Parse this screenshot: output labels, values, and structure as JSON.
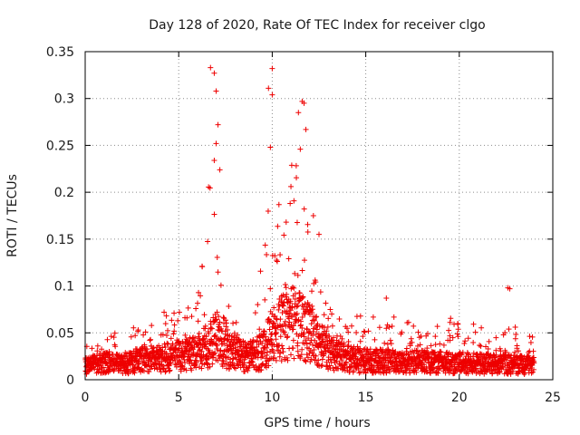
{
  "chart_data": {
    "type": "scatter",
    "title": "Day 128 of 2020, Rate Of TEC Index for receiver clgo",
    "xlabel": "GPS time / hours",
    "ylabel": "ROTI / TECUs",
    "xlim": [
      0,
      25
    ],
    "ylim": [
      0,
      0.35
    ],
    "x_ticks": [
      "0",
      "5",
      "10",
      "15",
      "20",
      "25"
    ],
    "y_ticks": [
      "0",
      "0.05",
      "0.1",
      "0.15",
      "0.2",
      "0.25",
      "0.3",
      "0.35"
    ],
    "x_tick_values": [
      0,
      5,
      10,
      15,
      20,
      25
    ],
    "y_tick_values": [
      0,
      0.05,
      0.1,
      0.15,
      0.2,
      0.25,
      0.3,
      0.35
    ],
    "grid": true,
    "marker": "+",
    "color": "#ee0000",
    "series": [
      {
        "name": "ROTI",
        "profile": {
          "hours": [
            0.0,
            0.5,
            1.0,
            1.5,
            2.0,
            2.5,
            3.0,
            3.5,
            4.0,
            4.5,
            5.0,
            5.5,
            6.0,
            6.5,
            6.8,
            7.0,
            7.3,
            7.6,
            8.0,
            8.5,
            9.0,
            9.5,
            9.8,
            10.0,
            10.5,
            11.0,
            11.3,
            11.6,
            12.0,
            12.5,
            13.0,
            13.5,
            14.0,
            15.0,
            16.0,
            17.0,
            18.0,
            19.0,
            20.0,
            21.0,
            22.0,
            23.0,
            24.0
          ],
          "median": [
            0.015,
            0.016,
            0.018,
            0.017,
            0.016,
            0.02,
            0.022,
            0.021,
            0.023,
            0.024,
            0.025,
            0.027,
            0.03,
            0.035,
            0.04,
            0.045,
            0.038,
            0.03,
            0.028,
            0.025,
            0.026,
            0.03,
            0.04,
            0.05,
            0.055,
            0.06,
            0.065,
            0.06,
            0.05,
            0.04,
            0.03,
            0.025,
            0.022,
            0.02,
            0.02,
            0.019,
            0.019,
            0.018,
            0.018,
            0.017,
            0.017,
            0.016,
            0.016
          ],
          "upper": [
            0.035,
            0.04,
            0.045,
            0.06,
            0.045,
            0.07,
            0.065,
            0.06,
            0.07,
            0.075,
            0.08,
            0.085,
            0.1,
            0.15,
            0.33,
            0.28,
            0.11,
            0.09,
            0.07,
            0.065,
            0.08,
            0.15,
            0.31,
            0.25,
            0.2,
            0.26,
            0.3,
            0.22,
            0.15,
            0.1,
            0.08,
            0.07,
            0.065,
            0.07,
            0.085,
            0.07,
            0.06,
            0.065,
            0.07,
            0.06,
            0.055,
            0.06,
            0.045
          ]
        },
        "outliers": [
          [
            6.7,
            0.333
          ],
          [
            6.9,
            0.327
          ],
          [
            7.0,
            0.308
          ],
          [
            7.1,
            0.272
          ],
          [
            7.0,
            0.252
          ],
          [
            6.9,
            0.234
          ],
          [
            7.2,
            0.224
          ],
          [
            9.8,
            0.311
          ],
          [
            10.0,
            0.332
          ],
          [
            10.0,
            0.304
          ],
          [
            9.9,
            0.248
          ],
          [
            11.6,
            0.297
          ],
          [
            11.7,
            0.295
          ],
          [
            11.4,
            0.285
          ],
          [
            11.8,
            0.267
          ],
          [
            11.5,
            0.246
          ],
          [
            11.0,
            0.206
          ],
          [
            16.1,
            0.087
          ],
          [
            22.6,
            0.098
          ],
          [
            22.7,
            0.097
          ],
          [
            12.5,
            0.155
          ],
          [
            12.2,
            0.175
          ]
        ]
      }
    ]
  }
}
